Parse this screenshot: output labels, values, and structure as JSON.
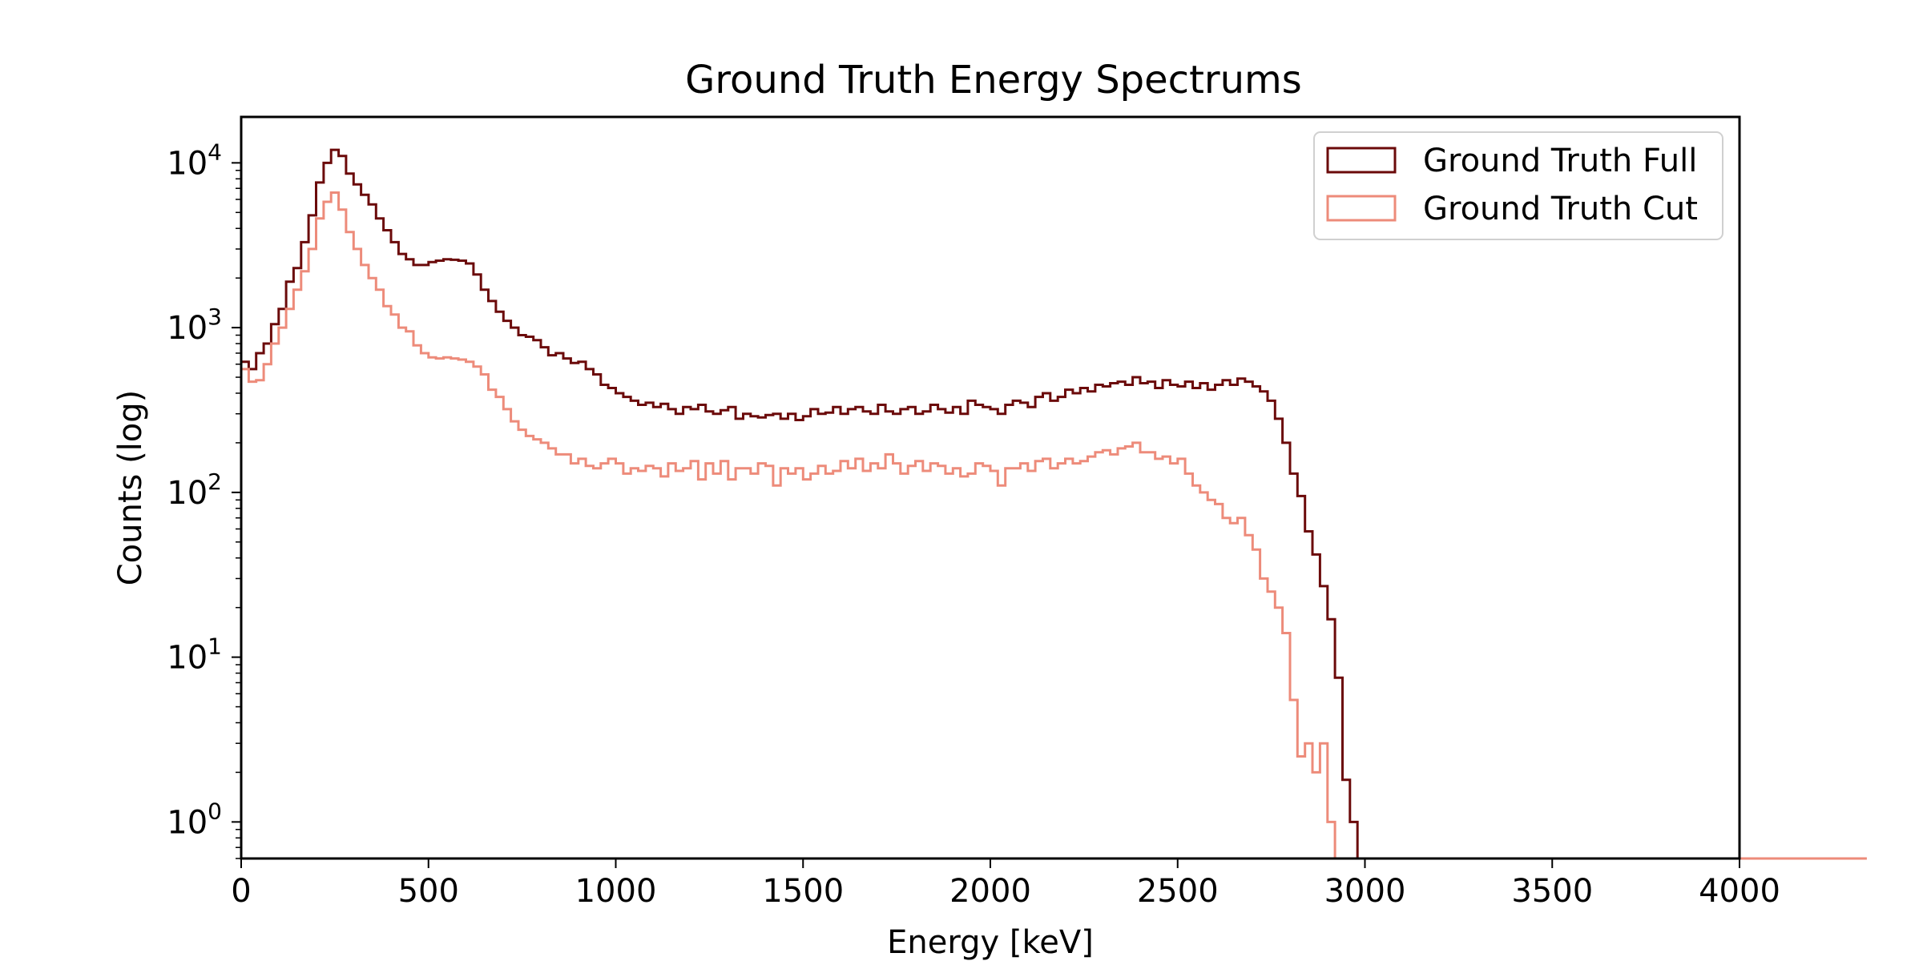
{
  "chart_data": {
    "type": "histogram_step",
    "title": "Ground Truth Energy Spectrums",
    "xlabel": "Energy [keV]",
    "ylabel": "Counts (log)",
    "xlim": [
      0,
      4000
    ],
    "ylim": [
      0.6,
      19000
    ],
    "yscale": "log",
    "grid": false,
    "legend_position": "top-right",
    "x_ticks": [
      0,
      500,
      1000,
      1500,
      2000,
      2500,
      3000,
      3500,
      4000
    ],
    "y_ticks": [
      {
        "value": 1,
        "mantissa": "10",
        "exponent": "0"
      },
      {
        "value": 10,
        "mantissa": "10",
        "exponent": "1"
      },
      {
        "value": 100,
        "mantissa": "10",
        "exponent": "2"
      },
      {
        "value": 1000,
        "mantissa": "10",
        "exponent": "3"
      },
      {
        "value": 10000,
        "mantissa": "10",
        "exponent": "4"
      }
    ],
    "bin_width": 20,
    "series": [
      {
        "name": "Ground Truth Full",
        "color": "#6b0a0a",
        "start": 0,
        "counts": [
          620,
          560,
          700,
          800,
          1050,
          1300,
          1900,
          2300,
          3300,
          4800,
          7600,
          10000,
          12000,
          11000,
          8600,
          7400,
          6400,
          5600,
          4600,
          3900,
          3300,
          2800,
          2600,
          2400,
          2400,
          2500,
          2550,
          2600,
          2580,
          2550,
          2450,
          2100,
          1700,
          1450,
          1250,
          1100,
          1000,
          900,
          880,
          840,
          760,
          680,
          700,
          650,
          610,
          620,
          560,
          520,
          450,
          430,
          400,
          380,
          360,
          340,
          350,
          330,
          345,
          320,
          300,
          330,
          320,
          340,
          310,
          300,
          315,
          330,
          280,
          300,
          290,
          285,
          295,
          300,
          280,
          300,
          275,
          290,
          320,
          300,
          305,
          330,
          300,
          320,
          330,
          310,
          300,
          340,
          310,
          300,
          320,
          330,
          300,
          310,
          340,
          320,
          305,
          330,
          300,
          360,
          340,
          330,
          320,
          300,
          340,
          360,
          350,
          330,
          380,
          400,
          360,
          380,
          420,
          400,
          430,
          410,
          450,
          440,
          460,
          470,
          450,
          500,
          460,
          470,
          430,
          480,
          450,
          440,
          470,
          430,
          460,
          420,
          450,
          480,
          450,
          490,
          470,
          440,
          410,
          360,
          280,
          200,
          130,
          95,
          58,
          42,
          27,
          17,
          7.5,
          1.8,
          1.0,
          0,
          0,
          0,
          0,
          0,
          0,
          0,
          0,
          0,
          0,
          0,
          0,
          0,
          0,
          0,
          0,
          0,
          0,
          0,
          0,
          0,
          0,
          0,
          0,
          0,
          0,
          0,
          0,
          0,
          0,
          0,
          0,
          0,
          0,
          0,
          0,
          0,
          0,
          0,
          0,
          0,
          0,
          0,
          0,
          0,
          0,
          0,
          0,
          0,
          0,
          0,
          0,
          0,
          0,
          0,
          0,
          0,
          0,
          0,
          0,
          0,
          0,
          0,
          0
        ]
      },
      {
        "name": "Ground Truth Cut",
        "color": "#ed8b7a",
        "start": 0,
        "counts": [
          560,
          470,
          480,
          600,
          800,
          1000,
          1300,
          1700,
          2200,
          3000,
          4600,
          5800,
          6600,
          5200,
          3800,
          3000,
          2400,
          2000,
          1700,
          1350,
          1200,
          1000,
          950,
          780,
          700,
          660,
          650,
          660,
          650,
          640,
          620,
          580,
          520,
          420,
          380,
          320,
          270,
          240,
          220,
          210,
          200,
          185,
          170,
          170,
          150,
          160,
          145,
          140,
          150,
          160,
          150,
          130,
          140,
          135,
          145,
          140,
          125,
          150,
          135,
          140,
          155,
          120,
          150,
          130,
          155,
          120,
          140,
          140,
          130,
          150,
          145,
          110,
          140,
          130,
          140,
          120,
          130,
          145,
          130,
          135,
          155,
          140,
          160,
          135,
          150,
          140,
          170,
          150,
          130,
          145,
          155,
          135,
          150,
          145,
          130,
          140,
          125,
          130,
          150,
          145,
          135,
          110,
          140,
          140,
          150,
          135,
          155,
          160,
          140,
          150,
          160,
          150,
          155,
          165,
          175,
          180,
          170,
          185,
          190,
          200,
          175,
          175,
          160,
          165,
          150,
          160,
          130,
          110,
          100,
          90,
          85,
          70,
          65,
          70,
          55,
          45,
          30,
          25,
          20,
          14,
          5.5,
          2.5,
          3.0,
          2.0,
          3.0,
          1.0,
          0,
          0,
          0,
          0,
          0,
          0,
          0,
          0,
          0,
          0,
          0,
          0,
          0,
          0,
          0,
          0,
          0,
          0,
          0,
          0,
          0,
          0,
          0,
          0,
          0,
          0,
          0,
          0,
          0,
          0,
          0,
          0,
          0,
          0,
          0,
          0,
          0,
          0,
          0,
          0,
          0,
          0,
          0,
          0,
          0,
          0,
          0,
          0,
          0,
          0,
          0,
          0,
          0,
          0,
          0,
          0,
          0,
          0,
          0,
          0,
          0,
          0,
          0,
          0,
          0,
          0,
          0,
          0,
          0,
          0,
          0
        ]
      }
    ]
  }
}
